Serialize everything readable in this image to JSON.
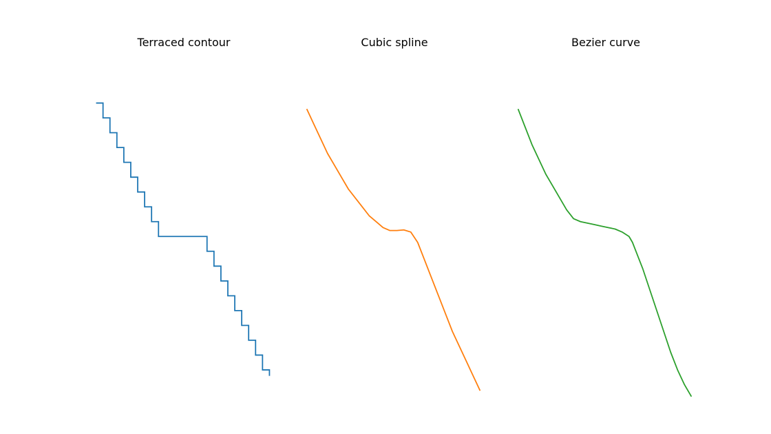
{
  "chart_data": [
    {
      "type": "line",
      "title": "Terraced contour",
      "xlabel": "",
      "ylabel": "",
      "grid": false,
      "axes_visible": false,
      "color": "#1f77b4",
      "x": [
        0.0,
        0.04,
        0.04,
        0.08,
        0.08,
        0.12,
        0.12,
        0.16,
        0.16,
        0.2,
        0.2,
        0.24,
        0.24,
        0.28,
        0.28,
        0.32,
        0.32,
        0.36,
        0.36,
        0.64,
        0.64,
        0.68,
        0.68,
        0.72,
        0.72,
        0.76,
        0.76,
        0.8,
        0.8,
        0.84,
        0.84,
        0.88,
        0.88,
        0.92,
        0.92,
        0.96,
        0.96,
        1.0,
        1.0
      ],
      "y": [
        1.0,
        1.0,
        0.95,
        0.95,
        0.9,
        0.9,
        0.85,
        0.85,
        0.8,
        0.8,
        0.75,
        0.75,
        0.7,
        0.7,
        0.65,
        0.65,
        0.6,
        0.6,
        0.55,
        0.55,
        0.5,
        0.5,
        0.45,
        0.45,
        0.4,
        0.4,
        0.35,
        0.35,
        0.3,
        0.3,
        0.25,
        0.25,
        0.2,
        0.2,
        0.15,
        0.15,
        0.1,
        0.1,
        0.08
      ],
      "xlim": [
        -0.05,
        1.05
      ],
      "ylim": [
        0.0,
        1.15
      ]
    },
    {
      "type": "line",
      "title": "Cubic spline",
      "xlabel": "",
      "ylabel": "",
      "grid": false,
      "axes_visible": false,
      "color": "#ff7f0e",
      "x": [
        0.0,
        0.04,
        0.08,
        0.12,
        0.16,
        0.2,
        0.24,
        0.28,
        0.32,
        0.36,
        0.4,
        0.44,
        0.48,
        0.52,
        0.56,
        0.6,
        0.64,
        0.68,
        0.72,
        0.76,
        0.8,
        0.84,
        0.88,
        0.92,
        0.96,
        1.0
      ],
      "y": [
        0.98,
        0.93,
        0.88,
        0.83,
        0.79,
        0.75,
        0.71,
        0.68,
        0.65,
        0.62,
        0.6,
        0.58,
        0.57,
        0.57,
        0.572,
        0.565,
        0.53,
        0.47,
        0.41,
        0.35,
        0.29,
        0.23,
        0.18,
        0.13,
        0.08,
        0.03
      ],
      "xlim": [
        -0.05,
        1.05
      ],
      "ylim": [
        0.0,
        1.15
      ]
    },
    {
      "type": "line",
      "title": "Bezier curve",
      "xlabel": "",
      "ylabel": "",
      "grid": false,
      "axes_visible": false,
      "color": "#2ca02c",
      "x": [
        0.0,
        0.04,
        0.08,
        0.12,
        0.16,
        0.2,
        0.24,
        0.28,
        0.32,
        0.36,
        0.4,
        0.44,
        0.48,
        0.52,
        0.56,
        0.6,
        0.64,
        0.66,
        0.68,
        0.72,
        0.76,
        0.8,
        0.84,
        0.88,
        0.92,
        0.96,
        1.0
      ],
      "y": [
        0.98,
        0.92,
        0.86,
        0.81,
        0.76,
        0.72,
        0.68,
        0.64,
        0.61,
        0.6,
        0.595,
        0.59,
        0.585,
        0.58,
        0.575,
        0.565,
        0.55,
        0.53,
        0.5,
        0.44,
        0.37,
        0.3,
        0.23,
        0.16,
        0.1,
        0.05,
        0.01
      ],
      "xlim": [
        -0.05,
        1.05
      ],
      "ylim": [
        0.0,
        1.15
      ]
    }
  ]
}
